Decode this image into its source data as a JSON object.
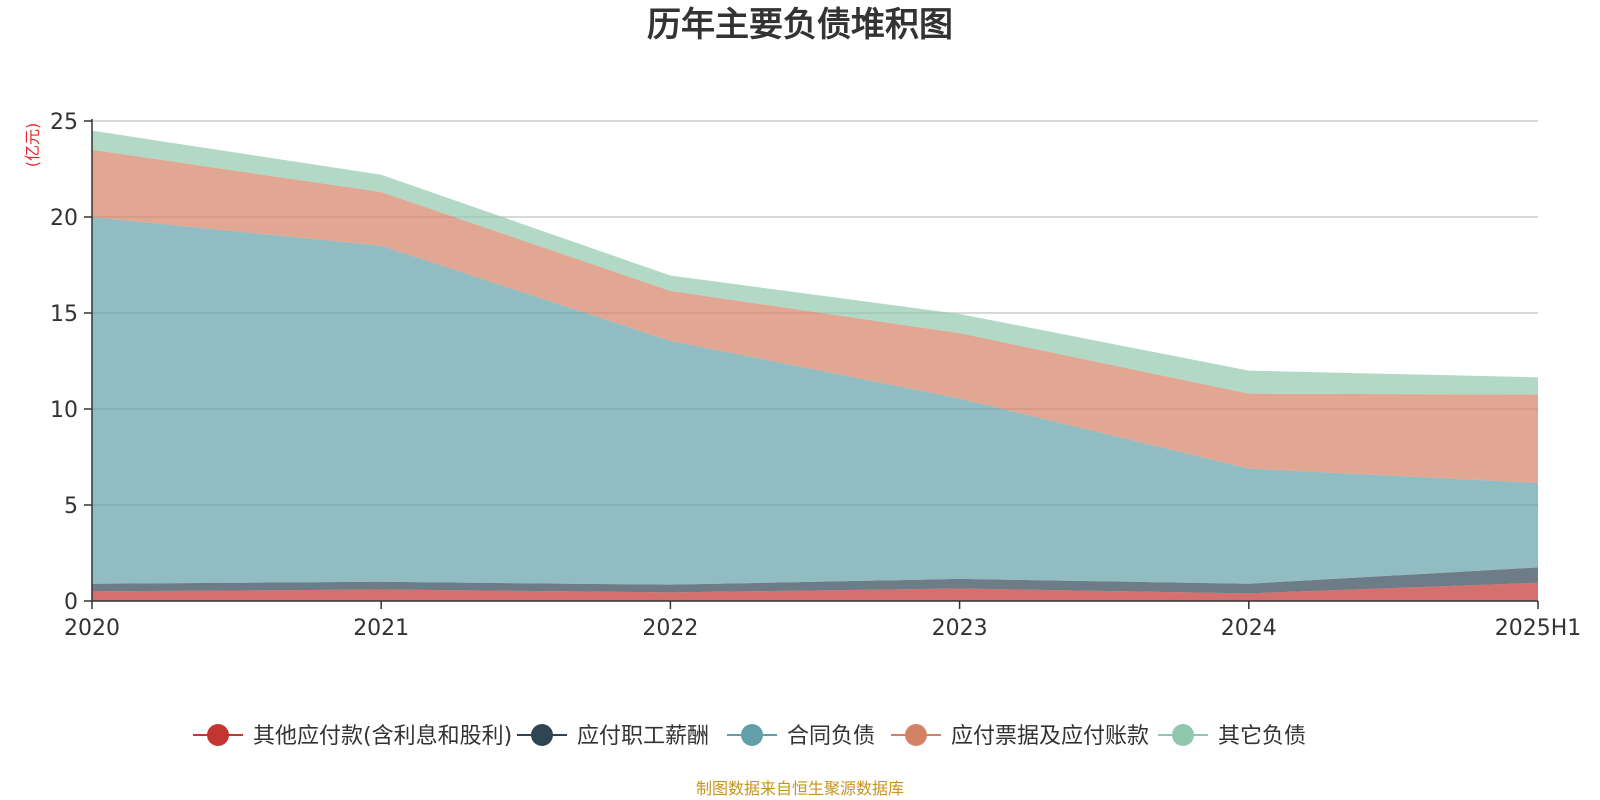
{
  "chart_data": {
    "type": "area",
    "stacked": true,
    "title": "历年主要负债堆积图",
    "unit_label": "(亿元)",
    "categories": [
      "2020",
      "2021",
      "2022",
      "2023",
      "2024",
      "2025H1"
    ],
    "ylim": [
      0,
      25
    ],
    "yticks": [
      0,
      5,
      10,
      15,
      20,
      25
    ],
    "grid": true,
    "legend_position": "bottom",
    "series": [
      {
        "name": "其他应付款(含利息和股利)",
        "color": "#c23531",
        "values": [
          0.5,
          0.6,
          0.45,
          0.65,
          0.4,
          0.95
        ]
      },
      {
        "name": "应付职工薪酬",
        "color": "#2f4554",
        "values": [
          0.4,
          0.4,
          0.4,
          0.5,
          0.5,
          0.8
        ]
      },
      {
        "name": "合同负债",
        "color": "#61a0a8",
        "values": [
          19.1,
          17.5,
          12.7,
          9.4,
          6.0,
          4.4
        ]
      },
      {
        "name": "应付票据及应付账款",
        "color": "#d48265",
        "values": [
          3.5,
          2.8,
          2.6,
          3.4,
          3.9,
          4.6
        ]
      },
      {
        "name": "其它负债",
        "color": "#91c7ae",
        "values": [
          1.0,
          0.9,
          0.8,
          1.0,
          1.2,
          0.9
        ]
      }
    ]
  },
  "source_note": "制图数据来自恒生聚源数据库"
}
